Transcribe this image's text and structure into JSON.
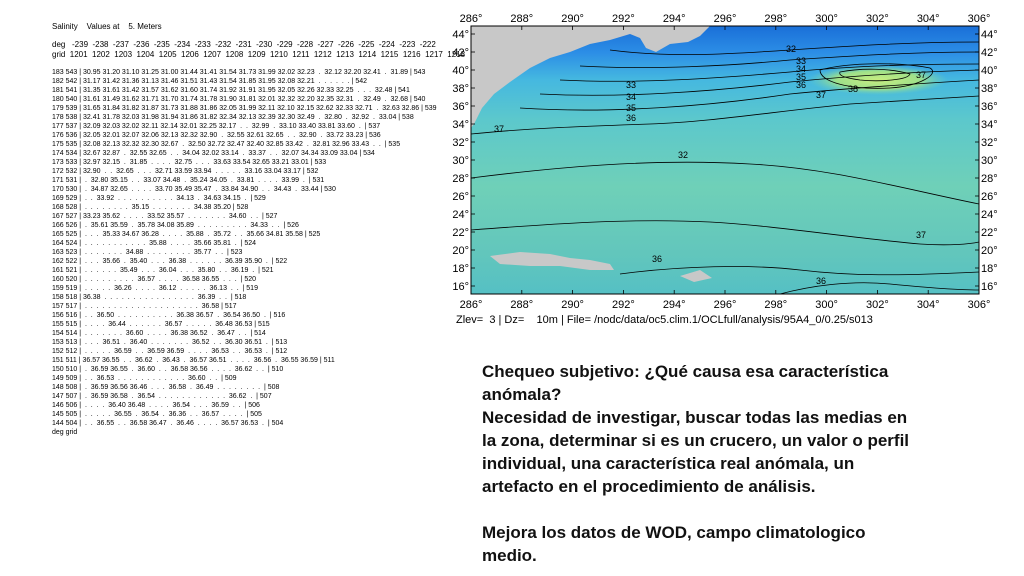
{
  "table": {
    "title": "Salinity    Values at    5. Meters",
    "deg_header": "deg   -239  -238  -237  -236  -235  -234  -233  -232  -231  -230  -229  -228  -227  -226  -225  -224  -223  -222",
    "grid_header": "grid  1201  1202  1203  1204  1205  1206  1207  1208  1209  1210  1211  1212  1213  1214  1215  1216  1217  1218",
    "rows": [
      "183 543 | 30.95 31.20 31.10 31.25 31.00 31.44 31.41 31.54 31.73 31.99 32.02 32.23  .  32.12 32.20 32.41  .  31.89 | 543",
      "182 542 | 31.17 31.42 31.36 31.13 31.46 31.51 31.43 31.54 31.85 31.95 32.08 32.21  .  .  .  .  .  . | 542",
      "181 541 | 31.35 31.61 31.42 31.57 31.62 31.60 31.74 31.92 31.91 31.95 32.05 32.26 32.33 32.25  .  .  .  32.48 | 541",
      "180 540 | 31.61 31.49 31.62 31.71 31.70 31.74 31.78 31.90 31.81 32.01 32.32 32.20 32.35 32.31  .  32.49  .  32.68 | 540",
      "179 539 | 31.65 31.84 31.82 31.87 31.73 31.88 31.86 32.05 31.99 32.11 32.10 32.15 32.62 32.33 32.71  .  32.63 32.86 | 539",
      "178 538 | 32.41 31.78 32.03 31.98 31.94 31.86 31.82 32.34 32.13 32.39 32.30 32.49  .  32.80  .  32.92  .  33.04 | 538",
      "177 537 | 32.09 32.03 32.02 32.11 32.14 32.01 32.25 32.17  .  .  32.99  .  33.10 33.40 33.81 33.60  .  | 537",
      "176 536 | 32.05 32.01 32.07 32.06 32.13 32.32 32.90  .  32.55 32.61 32.65  .  .  32.90  .  33.72 33.23 | 536",
      "175 535 | 32.08 32.13 32.32 32.30 32.67  .  32.50 32.72 32.47 32.40 32.85 33.42  .  32.81 32.96 33.43  .  .  | 535",
      "174 534 | 32.67 32.87  .  32.55 32.65  .  .  34.04 32.02 33.14  .  33.37  .  .  32.07 34.34 33.09 33.04 | 534",
      "173 533 | 32.97 32.15  .  31.85  .  .  .  .  32.75  .  .  .  33.63 33.54 32.65 33.21 33.01 | 533",
      "172 532 | 32.90  .  .  32.65  .  .  .  32.71 33.59 33.94  .  .  .  .  .  33.16 33.04 33.17 | 532",
      "171 531 |  .  32.80 35.15  .  .  33.07 34.48  .  35.24 34.05  .  33.81  .  .  .  .  33.99  .  | 531",
      "170 530 |  .  34.87 32.65  .  .  .  .  33.70 35.49 35.47  .  33.84 34.90  .  .  34.43  .  33.44 | 530",
      "169 529 |  .  .  33.92  .  .  .  .  .  .  .  .  .  .  34.13  .  34.63 34.15  .  | 529",
      "168 528 |  .  .  .  .  .  .  .  .  35.15  .  .  .  .  .  .  .  34.38 35.20 | 528",
      "167 527 | 33.23 35.62  .  .  .  .  33.52 35.57  .  .  .  .  .  .  .  34.60  .  .  | 527",
      "166 526 |  .  35.61 35.59  .  35.78 34.08 35.89  .  .  .  .  .  .  .  .  .  34.33  .  .  | 526",
      "165 525 |  .  .  .  35.33 34.67 36.28  .  .  .  .  35.88  .  35.72  .  .  35.66 34.81 35.58 | 525",
      "164 524 |  .  .  .  .  .  .  .  .  .  .  .  35.88  .  .  .  .  35.66 35.81  .  | 524",
      "163 523 |  .  .  .  .  .  .  .  34.88  .  .  .  .  .  .  .  .  35.77  .  .  | 523",
      "162 522 |  .  .  .  35.66  .  35.40  .  .  .  36.38  .  .  .  .  .  .  36.39 35.90  .  | 522",
      "161 521 |  .  .  .  .  .  .  35.49  .  .  .  36.04  .  .  .  35.80  .  .  36.19  .  | 521",
      "160 520 |  .  .  .  .  .  .  .  .  .  36.57  .  .  .  .  36.58 36.55  .  .  .  | 520",
      "159 519 |  .  .  .  .  .  36.26  .  .  .  .  36.12  .  .  .  .  .  36.13  .  .  | 519",
      "158 518 | 36.38  .  .  .  .  .  .  .  .  .  .  .  .  .  .  .  .  36.39  .  .  | 518",
      "157 517 |  .  .  .  .  .  .  .  .  .  .  .  .  .  .  .  .  .  .  .  .  36.58 | 517",
      "156 516 |  .  .  36.50  .  .  .  .  .  .  .  .  .  .  36.38 36.57  .  36.54 36.50  .  | 516",
      "155 515 |  .  .  .  .  36.44  .  .  .  .  .  .  36.57  .  .  .  .  .  36.48 36.53 | 515",
      "154 514 |  .  .  .  .  .  .  .  36.60  .  .  .  .  36.38 36.52  .  36.47  .  .  | 514",
      "153 513 |  .  .  .  36.51  .  36.40  .  .  .  .  .  .  .  36.52  .  .  36.30 36.51  .  | 513",
      "152 512 |  .  .  .  .  .  36.59  .  .  36.59 36.59  .  .  .  .  36.53  .  .  36.53  .  | 512",
      "151 511 | 36.57 36.55  .  .  36.62  .  36.43  .  36.57 36.51  .  .  .  .  36.56  .  36.55 36.59 | 511",
      "150 510 |  .  36.59 36.55  .  36.60  .  .  36.58 36.56  .  .  .  .  36.62  .  .  | 510",
      "149 509 |  .  .  36.53  .  .  .  .  .  .  .  .  .  .  .  .  36.60  .  .  | 509",
      "148 508 |  .  36.59 36.56 36.46  .  .  .  36.58  .  36.49  .  .  .  .  .  .  .  .  | 508",
      "147 507 |  .  36.59 36.58  .  36.54  .  .  .  .  .  .  .  .  .  .  .  .  36.62  .  | 507",
      "146 506 |  .  .  .  .  36.40 36.48  .  .  .  .  36.54  .  .  .  36.59  .  .  | 506",
      "145 505 |  .  .  .  .  .  36.55  .  36.54  .  36.36  .  .  36.57  .  .  .  .  | 505",
      "144 504 |  .  .  36.55  .  .  36.58 36.47  .  36.46  .  .  .  .  36.57 36.53  .  | 504"
    ],
    "footer": "deg grid"
  },
  "map": {
    "x_ticks": [
      "286°",
      "288°",
      "290°",
      "292°",
      "294°",
      "296°",
      "298°",
      "300°",
      "302°",
      "304°",
      "306°"
    ],
    "y_ticks": [
      "44°",
      "42°",
      "40°",
      "38°",
      "36°",
      "34°",
      "32°",
      "30°",
      "28°",
      "26°",
      "24°",
      "22°",
      "20°",
      "18°",
      "16°"
    ],
    "contour_labels": [
      "32",
      "33",
      "34",
      "35",
      "36",
      "37",
      "38",
      "37",
      "33",
      "34",
      "35",
      "36",
      "37",
      "37",
      "36",
      "36",
      "32",
      "33",
      "34",
      "35"
    ],
    "caption": "Zlev=  3 | Dz=    10m | File= /nodc/data/oc5.clim.1/OCLfull/analysis/95A4_0/0.25/s013",
    "colors": {
      "low_salinity": "#1a6fd8",
      "mid_salinity": "#34b4e0",
      "high_salinity": "#6fd0b8",
      "peak_salinity": "#b8e878",
      "land": "#c8c8c8"
    }
  },
  "body": {
    "question": "Chequeo subjetivo: ¿Qué causa esa característica anómala?",
    "paragraph": "Necesidad de investigar, buscar todas las medias en la zona, determinar si es un crucero, un valor o perfil individual, una característica real anómala, un artefacto en el procedimiento de análisis.",
    "conclusion": "Mejora los datos de WOD, campo climatologico medio."
  }
}
